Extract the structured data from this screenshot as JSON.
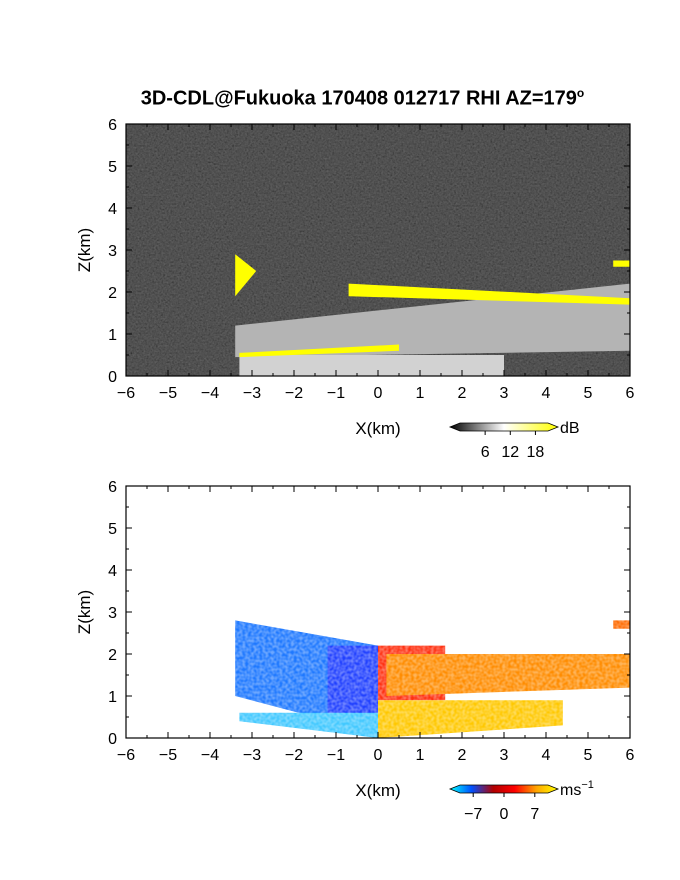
{
  "title": {
    "text": "3D-CDL@Fukuoka 170408 012717 RHI AZ=179",
    "sup": "o"
  },
  "chart_data": [
    {
      "type": "heatmap",
      "name": "backscatter",
      "xlabel": "X(km)",
      "ylabel": "Z(km)",
      "xlim": [
        -6,
        6
      ],
      "ylim": [
        0,
        6
      ],
      "x_ticks": [
        -6,
        -5,
        -4,
        -3,
        -2,
        -1,
        0,
        1,
        2,
        3,
        4,
        5,
        6
      ],
      "y_ticks": [
        0,
        1,
        2,
        3,
        4,
        5,
        6
      ],
      "background": "#1e1e1e",
      "colorbar": {
        "unit": "dB",
        "ticks": [
          6,
          12,
          18
        ],
        "range": [
          0,
          21
        ],
        "colors": [
          "#000000",
          "#ffffff",
          "#ffff00"
        ]
      },
      "regions": [
        {
          "x": [
            -3.4,
            6.0
          ],
          "z_bottom": [
            0.45,
            0.6
          ],
          "z_top": [
            1.2,
            2.2
          ],
          "fill": "#b4b4b4"
        },
        {
          "x": [
            -3.3,
            3.0
          ],
          "z_bottom": [
            0.0,
            0.0
          ],
          "z_top": [
            0.5,
            0.5
          ],
          "fill": "#d2d2d2"
        },
        {
          "x": [
            -0.7,
            6.0
          ],
          "z_bottom": [
            1.9,
            1.7
          ],
          "z_top": [
            2.2,
            1.85
          ],
          "fill": "#ffff00"
        },
        {
          "x": [
            -3.4,
            -2.9
          ],
          "z_bottom": [
            1.9,
            2.5
          ],
          "z_top": [
            2.9,
            2.5
          ],
          "fill": "#ffff00"
        },
        {
          "x": [
            5.6,
            6.0
          ],
          "z_bottom": [
            2.6,
            2.6
          ],
          "z_top": [
            2.75,
            2.75
          ],
          "fill": "#ffff00"
        },
        {
          "x": [
            -3.3,
            0.5
          ],
          "z_bottom": [
            0.45,
            0.6
          ],
          "z_top": [
            0.55,
            0.75
          ],
          "fill": "#ffff00"
        }
      ]
    },
    {
      "type": "heatmap",
      "name": "doppler_velocity",
      "xlabel": "X(km)",
      "ylabel": "Z(km)",
      "xlim": [
        -6,
        6
      ],
      "ylim": [
        0,
        6
      ],
      "x_ticks": [
        -6,
        -5,
        -4,
        -3,
        -2,
        -1,
        0,
        1,
        2,
        3,
        4,
        5,
        6
      ],
      "y_ticks": [
        0,
        1,
        2,
        3,
        4,
        5,
        6
      ],
      "background": "#ffffff",
      "colorbar": {
        "unit": "ms",
        "unit_sup": "−1",
        "ticks": [
          -7,
          0,
          7
        ],
        "tick_labels": [
          "−7",
          "0",
          "7"
        ],
        "range": [
          -10,
          10
        ],
        "colors": [
          "#00ffff",
          "#0050ff",
          "#b00000",
          "#ff0000",
          "#ffa500",
          "#ffff00"
        ]
      },
      "regions": [
        {
          "x": [
            -3.4,
            0.0
          ],
          "z_bottom": [
            1.0,
            0.1
          ],
          "z_top": [
            2.8,
            2.2
          ],
          "fill": "#1e78ff"
        },
        {
          "x": [
            -1.2,
            0.0
          ],
          "z_bottom": [
            0.2,
            0.0
          ],
          "z_top": [
            2.2,
            2.2
          ],
          "fill": "#2040ff"
        },
        {
          "x": [
            -3.3,
            0.0
          ],
          "z_bottom": [
            0.4,
            0.0
          ],
          "z_top": [
            0.6,
            0.6
          ],
          "fill": "#40c8ff"
        },
        {
          "x": [
            0.0,
            1.6
          ],
          "z_bottom": [
            0.9,
            0.9
          ],
          "z_top": [
            2.2,
            2.2
          ],
          "fill": "#ff3010"
        },
        {
          "x": [
            0.2,
            6.0
          ],
          "z_bottom": [
            1.0,
            1.2
          ],
          "z_top": [
            2.0,
            2.0
          ],
          "fill": "#ff8c00"
        },
        {
          "x": [
            0.0,
            4.4
          ],
          "z_bottom": [
            0.0,
            0.3
          ],
          "z_top": [
            0.9,
            0.9
          ],
          "fill": "#ffc800"
        },
        {
          "x": [
            5.6,
            6.0
          ],
          "z_bottom": [
            2.6,
            2.6
          ],
          "z_top": [
            2.8,
            2.8
          ],
          "fill": "#ff6a00"
        }
      ]
    }
  ]
}
